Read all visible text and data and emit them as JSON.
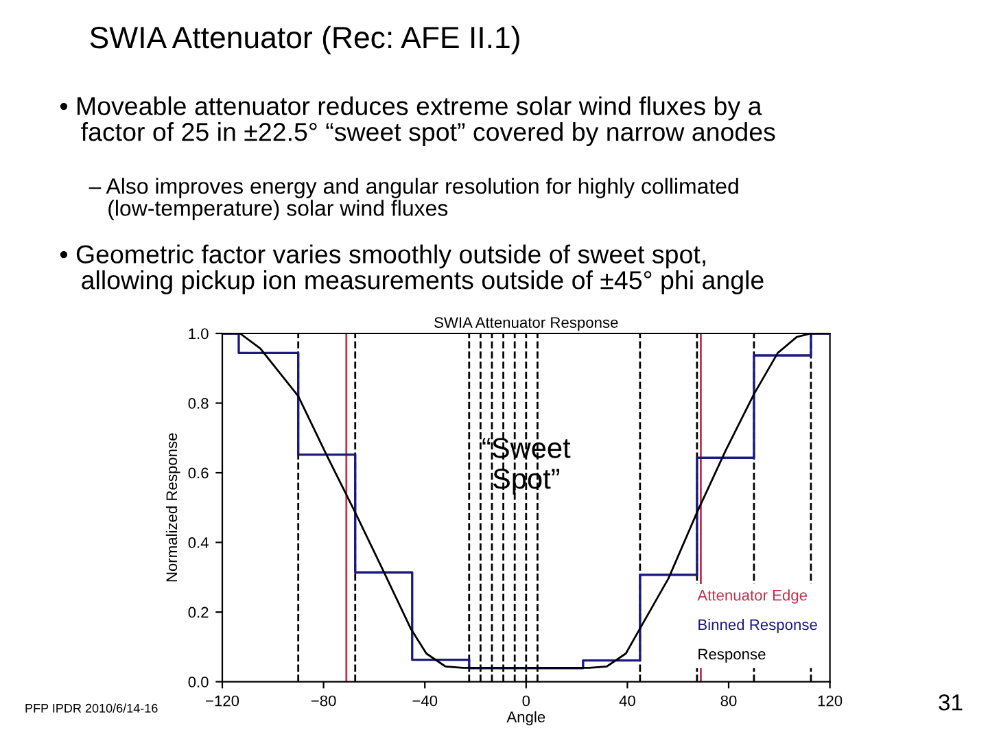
{
  "chart_data": {
    "type": "line",
    "title": "SWIA Attenuator Response",
    "xlabel": "Angle",
    "ylabel": "Normalized Response",
    "annotations": [
      "SWIA Attenuator (Rec: AFE II.1)",
      "• Moveable attenuator reduces extreme solar wind fluxes by a\n   factor of 25 in ±22.5° “sweet spot” covered by narrow anodes",
      "– Also improves energy and angular resolution for highly collimated\n   (low-temperature) solar wind fluxes",
      "• Geometric factor varies smoothly outside of sweet spot,\n   allowing pickup ion measurements outside of ±45° phi angle",
      {
        "text": "“Sweet\nSpot”",
        "x": 0,
        "y": 0.62
      },
      "PFP IPDR 2010/6/14-16",
      "31"
    ],
    "series": [
      {
        "name": "Binned Response",
        "type": "step",
        "color": "#1a1a80",
        "x": [
          -120,
          -113.5,
          -90,
          -67.5,
          -45,
          -22.5,
          22.5,
          45,
          67.5,
          90,
          112.5,
          120
        ],
        "values": [
          1.0,
          0.944,
          0.652,
          0.314,
          0.063,
          0.039,
          0.061,
          0.307,
          0.643,
          0.937,
          1.0,
          1.0
        ]
      },
      {
        "name": "Response",
        "type": "line",
        "color": "#000000",
        "x": [
          -120,
          -113,
          -105,
          -90,
          -78.75,
          -67.5,
          -56.25,
          -45.6,
          -39.4,
          -31.9,
          -25,
          0,
          25,
          31.9,
          39.4,
          45,
          56.25,
          67.5,
          78.75,
          90,
          99.4,
          106.9,
          112.5,
          120
        ],
        "values": [
          1.0,
          1.0,
          0.957,
          0.82,
          0.65,
          0.486,
          0.316,
          0.153,
          0.081,
          0.044,
          0.04,
          0.04,
          0.04,
          0.044,
          0.081,
          0.153,
          0.297,
          0.486,
          0.663,
          0.826,
          0.944,
          0.99,
          1.0,
          1.0
        ]
      }
    ],
    "ref_lines": [
      {
        "axis": "x",
        "value": -71,
        "label": "Attenuator Edge",
        "color": "#c0304a"
      },
      {
        "axis": "x",
        "value": 69,
        "color": "#c0304a"
      },
      {
        "axis": "x",
        "value": -90,
        "color": "#000000",
        "line_style": "dashed"
      },
      {
        "axis": "x",
        "value": -67.5,
        "color": "#000000",
        "line_style": "dashed"
      },
      {
        "axis": "x",
        "value": -22.5,
        "color": "#000000",
        "line_style": "dashed"
      },
      {
        "axis": "x",
        "value": -18,
        "color": "#000000",
        "line_style": "dashed"
      },
      {
        "axis": "x",
        "value": -13.5,
        "color": "#000000",
        "line_style": "dashed"
      },
      {
        "axis": "x",
        "value": -9,
        "color": "#000000",
        "line_style": "dashed"
      },
      {
        "axis": "x",
        "value": -4.5,
        "color": "#000000",
        "line_style": "dashed"
      },
      {
        "axis": "x",
        "value": 0,
        "color": "#000000",
        "line_style": "dashed"
      },
      {
        "axis": "x",
        "value": 4.5,
        "color": "#000000",
        "line_style": "dashed"
      },
      {
        "axis": "x",
        "value": 45,
        "color": "#000000",
        "line_style": "dashed"
      },
      {
        "axis": "x",
        "value": 67.5,
        "color": "#000000",
        "line_style": "dashed"
      },
      {
        "axis": "x",
        "value": 90,
        "color": "#000000",
        "line_style": "dashed"
      },
      {
        "axis": "x",
        "value": 112.5,
        "color": "#000000",
        "line_style": "dashed"
      }
    ],
    "xlim": [
      -120,
      120
    ],
    "xticks": [
      {
        "value": -120,
        "label": "−120"
      },
      {
        "value": -80,
        "label": "−80"
      },
      {
        "value": -40,
        "label": "−40"
      },
      0,
      40,
      80,
      120
    ],
    "ylim": [
      0,
      1
    ],
    "yticks": [
      {
        "value": 0,
        "label": "0.0"
      },
      0.2,
      0.4,
      0.6,
      0.8,
      {
        "value": 1,
        "label": "1.0"
      }
    ],
    "legend": "bottom right",
    "grid": false,
    "marker": "none",
    "line_style": "solid"
  }
}
